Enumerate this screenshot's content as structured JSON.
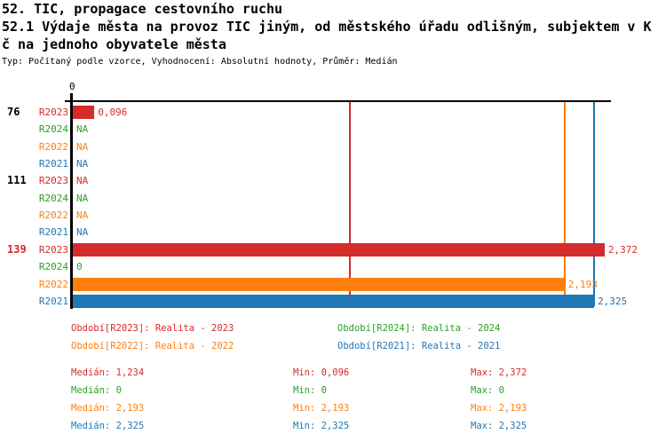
{
  "header": {
    "title_line1": "52. TIC, propagace cestovního ruchu",
    "title_line2": "52.1 Výdaje města na provoz TIC jiným, od městského úřadu odlišným, subjektem v K",
    "title_line3": "č na jednoho obyvatele města",
    "meta": "Typ: Počítaný podle vzorce, Vyhodnocení: Absolutní hodnoty, Průměr: Medián"
  },
  "colors": {
    "R2023": "#d62b2b",
    "R2024": "#2ca02c",
    "R2022": "#ff7f0e",
    "R2021": "#1f77b4",
    "axis": "#000000",
    "id_default": "#000000",
    "id_highlight": "#d62b2b"
  },
  "chart_data": {
    "type": "bar",
    "orientation": "horizontal",
    "xlabel": "",
    "ylabel": "",
    "xlim": [
      0,
      2.4
    ],
    "x_tick_labels": [
      "0"
    ],
    "grid": "median-lines-only",
    "groups": [
      {
        "id": "76",
        "id_color": "#000000",
        "bars": [
          {
            "series": "R2023",
            "value": 0.096,
            "label": "0,096"
          },
          {
            "series": "R2024",
            "value": null,
            "label": "NA"
          },
          {
            "series": "R2022",
            "value": null,
            "label": "NA"
          },
          {
            "series": "R2021",
            "value": null,
            "label": "NA"
          }
        ]
      },
      {
        "id": "111",
        "id_color": "#000000",
        "bars": [
          {
            "series": "R2023",
            "value": null,
            "label": "NA"
          },
          {
            "series": "R2024",
            "value": null,
            "label": "NA"
          },
          {
            "series": "R2022",
            "value": null,
            "label": "NA"
          },
          {
            "series": "R2021",
            "value": null,
            "label": "NA"
          }
        ]
      },
      {
        "id": "139",
        "id_color": "#d62b2b",
        "bars": [
          {
            "series": "R2023",
            "value": 2.372,
            "label": "2,372"
          },
          {
            "series": "R2024",
            "value": 0,
            "label": "0"
          },
          {
            "series": "R2022",
            "value": 2.193,
            "label": "2,193"
          },
          {
            "series": "R2021",
            "value": 2.325,
            "label": "2,325"
          }
        ]
      }
    ],
    "medians": [
      {
        "series": "R2023",
        "value": 1.234
      },
      {
        "series": "R2024",
        "value": 0
      },
      {
        "series": "R2022",
        "value": 2.193
      },
      {
        "series": "R2021",
        "value": 2.325
      }
    ]
  },
  "legend": {
    "items": [
      {
        "series": "R2023",
        "text": "Období[R2023]: Realita - 2023"
      },
      {
        "series": "R2024",
        "text": "Období[R2024]: Realita - 2024"
      },
      {
        "series": "R2022",
        "text": "Období[R2022]: Realita - 2022"
      },
      {
        "series": "R2021",
        "text": "Období[R2021]: Realita - 2021"
      }
    ]
  },
  "stats": {
    "labels": {
      "median": "Medián",
      "min": "Min",
      "max": "Max"
    },
    "rows": [
      {
        "series": "R2023",
        "median": "1,234",
        "min": "0,096",
        "max": "2,372"
      },
      {
        "series": "R2024",
        "median": "0",
        "min": "0",
        "max": "0"
      },
      {
        "series": "R2022",
        "median": "2,193",
        "min": "2,193",
        "max": "2,193"
      },
      {
        "series": "R2021",
        "median": "2,325",
        "min": "2,325",
        "max": "2,325"
      }
    ]
  }
}
